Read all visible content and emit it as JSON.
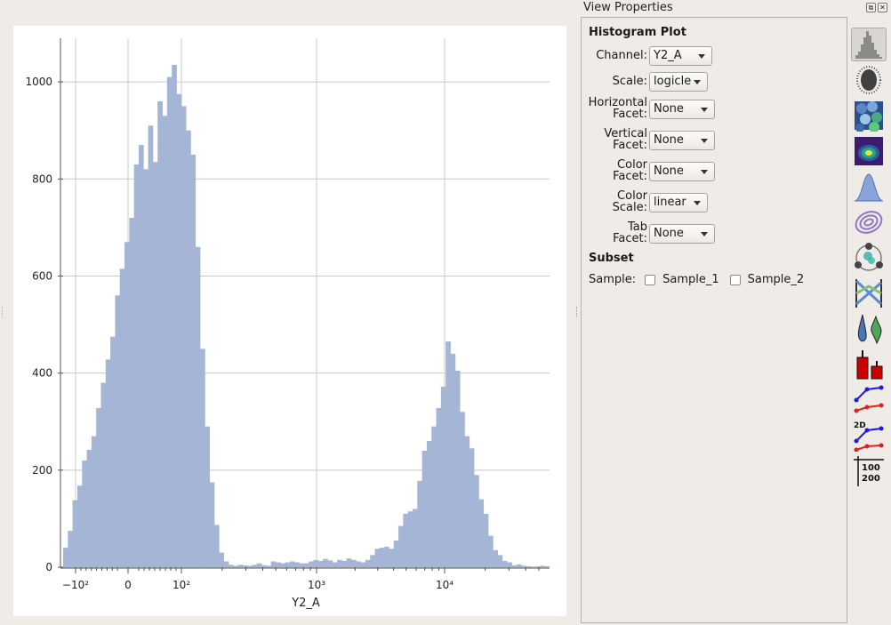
{
  "window": {
    "panel_title": "View Properties",
    "panel_float_glyph": "⧉",
    "panel_close_glyph": "✕"
  },
  "properties": {
    "section_title": "Histogram Plot",
    "rows": [
      {
        "label": "Channel:",
        "value": "Y2_A"
      },
      {
        "label": "Scale:",
        "value": "logicle"
      },
      {
        "label": "Horizontal\nFacet:",
        "value": "None"
      },
      {
        "label": "Vertical\nFacet:",
        "value": "None"
      },
      {
        "label": "Color\nFacet:",
        "value": "None"
      },
      {
        "label": "Color\nScale:",
        "value": "linear"
      },
      {
        "label": "Tab\nFacet:",
        "value": "None"
      }
    ],
    "subset_title": "Subset",
    "sample_label": "Sample:",
    "samples": [
      {
        "label": "Sample_1",
        "checked": false
      },
      {
        "label": "Sample_2",
        "checked": false
      }
    ]
  },
  "toolbar": {
    "tools": [
      {
        "icon": "histogram-icon",
        "active": true
      },
      {
        "icon": "scatterplot-icon",
        "active": false
      },
      {
        "icon": "hexbin-icon",
        "active": false
      },
      {
        "icon": "density-2d-icon",
        "active": false
      },
      {
        "icon": "kde-1d-icon",
        "active": false
      },
      {
        "icon": "kde-2d-contour-icon",
        "active": false
      },
      {
        "icon": "radviz-icon",
        "active": false
      },
      {
        "icon": "parallel-coordinates-icon",
        "active": false
      },
      {
        "icon": "violin-icon",
        "active": false
      },
      {
        "icon": "bar-chart-icon",
        "active": false
      },
      {
        "icon": "stats-1d-icon",
        "active": false
      },
      {
        "icon": "stats-2d-icon",
        "active": false
      },
      {
        "icon": "table-view-icon",
        "active": false
      }
    ],
    "label_2d": "2D",
    "table_label_a": "100",
    "table_label_b": "200"
  },
  "colors": {
    "bar_fill": "#a4b5d6",
    "grid": "#c8c8c8",
    "axis": "#555555",
    "series_blue": "#1a1aee",
    "series_red": "#e02020",
    "bar_red": "#cc0000"
  },
  "chart_data": {
    "type": "bar",
    "title": "",
    "xlabel": "Y2_A",
    "ylabel": "",
    "x_scale": "logicle",
    "x_tick_labels": [
      "−10²",
      "0",
      "10²",
      "10³",
      "10⁴"
    ],
    "x_tick_values": [
      -100,
      0,
      100,
      1000,
      10000
    ],
    "y_tick_labels": [
      "0",
      "200",
      "400",
      "600",
      "800",
      "1000"
    ],
    "y_tick_values": [
      0,
      200,
      400,
      600,
      800,
      1000
    ],
    "ylim": [
      0,
      1090
    ],
    "grid": true,
    "bin_count": 103,
    "counts": [
      40,
      75,
      138,
      168,
      220,
      242,
      270,
      328,
      380,
      428,
      475,
      560,
      615,
      670,
      720,
      830,
      870,
      820,
      910,
      835,
      960,
      930,
      1010,
      1035,
      975,
      950,
      900,
      850,
      660,
      450,
      290,
      175,
      87,
      30,
      12,
      5,
      3,
      5,
      4,
      3,
      5,
      8,
      4,
      3,
      12,
      10,
      8,
      10,
      12,
      10,
      8,
      8,
      12,
      15,
      13,
      17,
      14,
      10,
      15,
      13,
      18,
      15,
      12,
      10,
      15,
      25,
      38,
      40,
      42,
      38,
      55,
      85,
      110,
      115,
      120,
      178,
      240,
      260,
      290,
      328,
      372,
      465,
      440,
      405,
      320,
      270,
      245,
      190,
      140,
      110,
      65,
      35,
      25,
      13,
      10,
      4,
      6,
      3,
      2,
      1,
      2,
      3,
      2
    ]
  }
}
